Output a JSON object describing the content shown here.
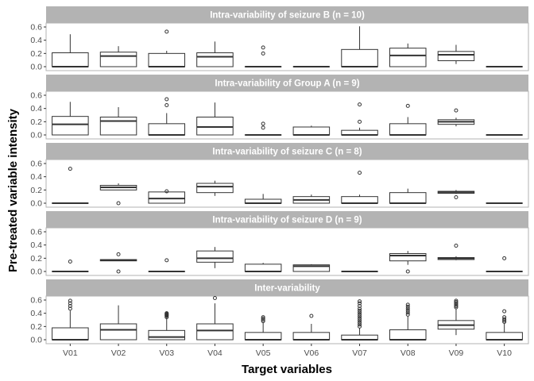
{
  "chart_data": {
    "type": "boxplot",
    "xlabel": "Target variables",
    "ylabel": "Pre-treated variable intensity",
    "categories": [
      "V01",
      "V02",
      "V03",
      "V04",
      "V05",
      "V06",
      "V07",
      "V08",
      "V09",
      "V10"
    ],
    "ylim": [
      0,
      0.6
    ],
    "yticks": [
      "0.0",
      "0.2",
      "0.4",
      "0.6"
    ],
    "grid": false,
    "colors": {
      "strip_bg": "#b3b3b3",
      "strip_text": "#ffffff",
      "box_stroke": "#333333",
      "panel_border": "#b3b3b3"
    },
    "panels": [
      {
        "title": "Intra-variability of seizure B (n = 10)",
        "boxes": [
          {
            "min": 0,
            "q1": 0,
            "median": 0,
            "q3": 0.21,
            "max": 0.49,
            "outliers": []
          },
          {
            "min": 0,
            "q1": 0,
            "median": 0.16,
            "q3": 0.22,
            "max": 0.31,
            "outliers": []
          },
          {
            "min": 0,
            "q1": 0,
            "median": 0,
            "q3": 0.2,
            "max": 0.24,
            "outliers": [
              0.53
            ]
          },
          {
            "min": 0,
            "q1": 0,
            "median": 0.15,
            "q3": 0.21,
            "max": 0.38,
            "outliers": []
          },
          {
            "min": 0,
            "q1": 0,
            "median": 0,
            "q3": 0,
            "max": 0,
            "outliers": [
              0.2,
              0.29
            ]
          },
          {
            "min": 0,
            "q1": 0,
            "median": 0,
            "q3": 0,
            "max": 0,
            "outliers": []
          },
          {
            "min": 0,
            "q1": 0,
            "median": 0,
            "q3": 0.26,
            "max": 0.61,
            "outliers": []
          },
          {
            "min": 0,
            "q1": 0,
            "median": 0.17,
            "q3": 0.28,
            "max": 0.35,
            "outliers": []
          },
          {
            "min": 0.04,
            "q1": 0.09,
            "median": 0.18,
            "q3": 0.23,
            "max": 0.33,
            "outliers": []
          },
          {
            "min": 0,
            "q1": 0,
            "median": 0,
            "q3": 0,
            "max": 0,
            "outliers": []
          }
        ]
      },
      {
        "title": "Intra-variability of Group A (n = 9)",
        "boxes": [
          {
            "min": 0,
            "q1": 0,
            "median": 0.16,
            "q3": 0.28,
            "max": 0.5,
            "outliers": []
          },
          {
            "min": 0,
            "q1": 0,
            "median": 0.21,
            "q3": 0.27,
            "max": 0.42,
            "outliers": []
          },
          {
            "min": 0,
            "q1": 0,
            "median": 0,
            "q3": 0.17,
            "max": 0.33,
            "outliers": [
              0.45,
              0.54
            ]
          },
          {
            "min": 0,
            "q1": 0,
            "median": 0.12,
            "q3": 0.27,
            "max": 0.49,
            "outliers": []
          },
          {
            "min": 0,
            "q1": 0,
            "median": 0,
            "q3": 0,
            "max": 0,
            "outliers": [
              0.11,
              0.17
            ]
          },
          {
            "min": 0,
            "q1": 0,
            "median": 0,
            "q3": 0.12,
            "max": 0.14,
            "outliers": []
          },
          {
            "min": 0,
            "q1": 0,
            "median": 0,
            "q3": 0.07,
            "max": 0.11,
            "outliers": [
              0.2,
              0.46
            ]
          },
          {
            "min": 0,
            "q1": 0,
            "median": 0,
            "q3": 0.17,
            "max": 0.27,
            "outliers": [
              0.44
            ]
          },
          {
            "min": 0.13,
            "q1": 0.16,
            "median": 0.2,
            "q3": 0.23,
            "max": 0.26,
            "outliers": [
              0.37
            ]
          },
          {
            "min": 0,
            "q1": 0,
            "median": 0,
            "q3": 0,
            "max": 0,
            "outliers": []
          }
        ]
      },
      {
        "title": "Intra-variability of seizure C (n = 8)",
        "boxes": [
          {
            "min": 0,
            "q1": 0,
            "median": 0,
            "q3": 0,
            "max": 0,
            "outliers": [
              0.52
            ]
          },
          {
            "min": 0.2,
            "q1": 0.2,
            "median": 0.24,
            "q3": 0.27,
            "max": 0.3,
            "outliers": [
              0
            ]
          },
          {
            "min": 0,
            "q1": 0,
            "median": 0.07,
            "q3": 0.17,
            "max": 0.18,
            "outliers": [
              0.18
            ]
          },
          {
            "min": 0.11,
            "q1": 0.16,
            "median": 0.25,
            "q3": 0.3,
            "max": 0.34,
            "outliers": []
          },
          {
            "min": 0,
            "q1": 0,
            "median": 0,
            "q3": 0.06,
            "max": 0.14,
            "outliers": []
          },
          {
            "min": 0,
            "q1": 0,
            "median": 0.05,
            "q3": 0.1,
            "max": 0.13,
            "outliers": []
          },
          {
            "min": 0,
            "q1": 0,
            "median": 0,
            "q3": 0.1,
            "max": 0.13,
            "outliers": [
              0.46
            ]
          },
          {
            "min": 0,
            "q1": 0,
            "median": 0,
            "q3": 0.16,
            "max": 0.22,
            "outliers": []
          },
          {
            "min": 0.14,
            "q1": 0.15,
            "median": 0.17,
            "q3": 0.18,
            "max": 0.2,
            "outliers": [
              0.09
            ]
          },
          {
            "min": 0,
            "q1": 0,
            "median": 0,
            "q3": 0,
            "max": 0,
            "outliers": []
          }
        ]
      },
      {
        "title": "Intra-variability of seizure D (n = 9)",
        "boxes": [
          {
            "min": 0,
            "q1": 0,
            "median": 0,
            "q3": 0,
            "max": 0,
            "outliers": [
              0.15
            ]
          },
          {
            "min": 0.16,
            "q1": 0.16,
            "median": 0.17,
            "q3": 0.18,
            "max": 0.18,
            "outliers": [
              0.26,
              0
            ]
          },
          {
            "min": 0,
            "q1": 0,
            "median": 0,
            "q3": 0,
            "max": 0,
            "outliers": [
              0.17
            ]
          },
          {
            "min": 0.05,
            "q1": 0.14,
            "median": 0.2,
            "q3": 0.31,
            "max": 0.37,
            "outliers": []
          },
          {
            "min": 0,
            "q1": 0,
            "median": 0,
            "q3": 0.11,
            "max": 0.13,
            "outliers": []
          },
          {
            "min": 0,
            "q1": 0,
            "median": 0.08,
            "q3": 0.1,
            "max": 0.11,
            "outliers": []
          },
          {
            "min": 0,
            "q1": 0,
            "median": 0,
            "q3": 0,
            "max": 0,
            "outliers": []
          },
          {
            "min": 0.1,
            "q1": 0.16,
            "median": 0.24,
            "q3": 0.27,
            "max": 0.31,
            "outliers": [
              0
            ]
          },
          {
            "min": 0.17,
            "q1": 0.18,
            "median": 0.2,
            "q3": 0.21,
            "max": 0.23,
            "outliers": [
              0.39
            ]
          },
          {
            "min": 0,
            "q1": 0,
            "median": 0,
            "q3": 0,
            "max": 0,
            "outliers": [
              0.2
            ]
          }
        ]
      },
      {
        "title": "Inter-variability",
        "boxes": [
          {
            "min": 0,
            "q1": 0,
            "median": 0,
            "q3": 0.18,
            "max": 0.44,
            "outliers": [
              0.47,
              0.51,
              0.55,
              0.59
            ]
          },
          {
            "min": 0,
            "q1": 0,
            "median": 0.15,
            "q3": 0.24,
            "max": 0.52,
            "outliers": []
          },
          {
            "min": 0,
            "q1": 0,
            "median": 0.04,
            "q3": 0.14,
            "max": 0.33,
            "outliers": [
              0.34,
              0.36,
              0.37,
              0.38,
              0.39,
              0.4
            ]
          },
          {
            "min": 0,
            "q1": 0,
            "median": 0.14,
            "q3": 0.24,
            "max": 0.55,
            "outliers": [
              0.63
            ]
          },
          {
            "min": 0,
            "q1": 0,
            "median": 0,
            "q3": 0.11,
            "max": 0.26,
            "outliers": [
              0.28,
              0.3,
              0.32,
              0.34
            ]
          },
          {
            "min": 0,
            "q1": 0,
            "median": 0,
            "q3": 0.11,
            "max": 0.24,
            "outliers": [
              0.36
            ]
          },
          {
            "min": 0,
            "q1": 0,
            "median": 0,
            "q3": 0.07,
            "max": 0.18,
            "outliers": [
              0.2,
              0.23,
              0.26,
              0.29,
              0.32,
              0.35,
              0.38,
              0.41,
              0.44,
              0.47,
              0.51,
              0.55,
              0.58
            ]
          },
          {
            "min": 0,
            "q1": 0,
            "median": 0,
            "q3": 0.15,
            "max": 0.36,
            "outliers": [
              0.38,
              0.41,
              0.44,
              0.47,
              0.5,
              0.53
            ]
          },
          {
            "min": 0.07,
            "q1": 0.16,
            "median": 0.22,
            "q3": 0.29,
            "max": 0.47,
            "outliers": [
              0.49,
              0.51,
              0.53,
              0.55,
              0.57,
              0.59
            ]
          },
          {
            "min": 0,
            "q1": 0,
            "median": 0,
            "q3": 0.11,
            "max": 0.24,
            "outliers": [
              0.27,
              0.29,
              0.31,
              0.34,
              0.43
            ]
          }
        ]
      }
    ]
  }
}
